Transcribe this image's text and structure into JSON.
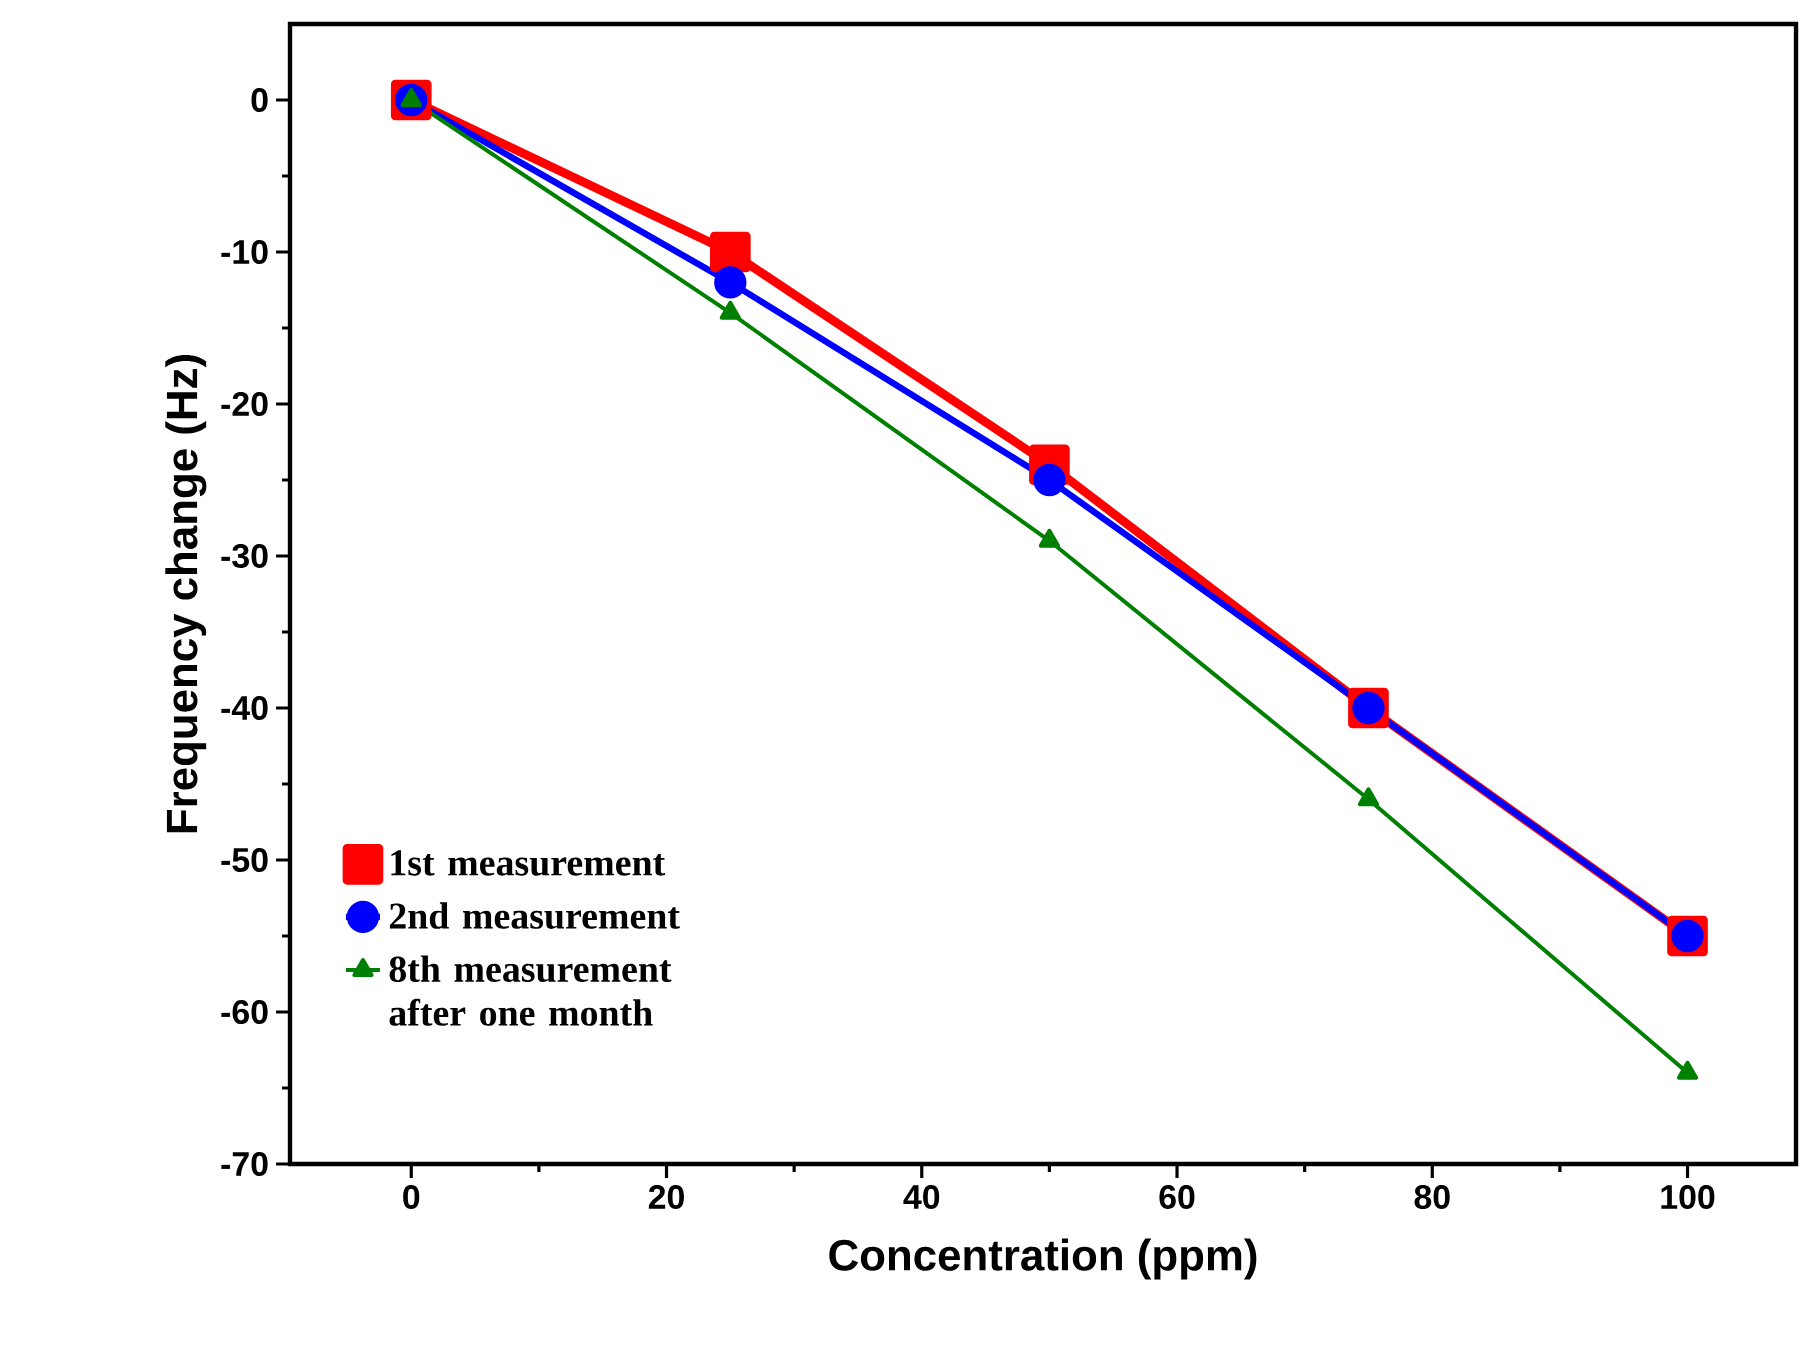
{
  "chart_data": {
    "type": "line",
    "xlabel": "Concentration (ppm)",
    "ylabel": "Frequency change (Hz)",
    "x": [
      0,
      25,
      50,
      75,
      100
    ],
    "series": [
      {
        "name": "1st measurement",
        "color": "#ff0000",
        "marker": "square",
        "values": [
          0,
          -10,
          -24,
          -40,
          -55
        ]
      },
      {
        "name": "2nd measurement",
        "color": "#0000ff",
        "marker": "circle",
        "values": [
          0,
          -12,
          -25,
          -40,
          -55
        ]
      },
      {
        "name": "8th measurement after one month",
        "color": "#008000",
        "marker": "triangle",
        "values": [
          0,
          -14,
          -29,
          -46,
          -64
        ]
      }
    ],
    "xlim": [
      -9.5,
      108.5
    ],
    "ylim": [
      -70,
      5
    ],
    "xticks": [
      0,
      20,
      40,
      60,
      80,
      100
    ],
    "yticks": [
      0,
      -10,
      -20,
      -30,
      -40,
      -50,
      -60,
      -70
    ],
    "legend": "left",
    "grid": false,
    "line_style": "solid"
  }
}
